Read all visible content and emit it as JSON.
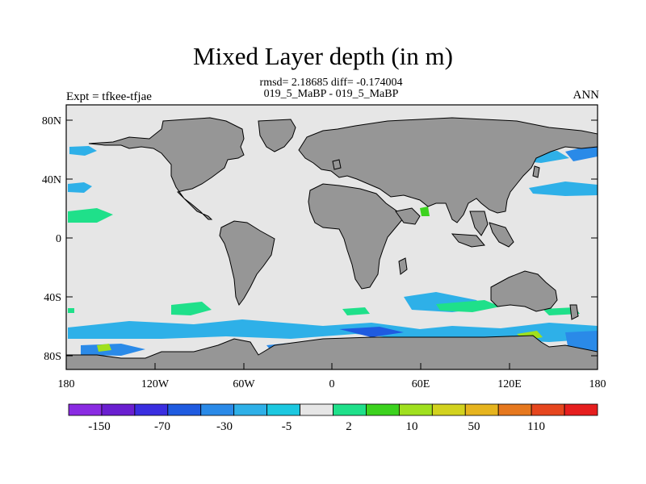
{
  "title": "Mixed Layer depth (in m)",
  "stats_line": "rmsd= 2.18685 diff= -0.174004",
  "case_line": "019_5_MaBP - 019_5_MaBP",
  "left_label": "Expt = tfkee-tfjae",
  "right_label": "ANN",
  "map": {
    "lon_ticks": [
      "180",
      "120W",
      "60W",
      "0",
      "60E",
      "120E",
      "180"
    ],
    "lat_ticks": [
      "80N",
      "40N",
      "0",
      "40S",
      "80S"
    ],
    "ocean_color": "#e6e6e6",
    "land_color": "#969696"
  },
  "colorbar": {
    "colors": [
      "#8a2be2",
      "#6a1fd0",
      "#3a2ee0",
      "#1f5be0",
      "#2a8ae8",
      "#2eb0e8",
      "#1cc8e0",
      "#e6e6e6",
      "#1fe08a",
      "#3cd21e",
      "#a0e01e",
      "#d2d21e",
      "#e6b41e",
      "#e6781e",
      "#e6461e",
      "#e61e1e"
    ],
    "labels": [
      "-150",
      "-70",
      "-30",
      "-5",
      "2",
      "10",
      "50",
      "110"
    ]
  }
}
